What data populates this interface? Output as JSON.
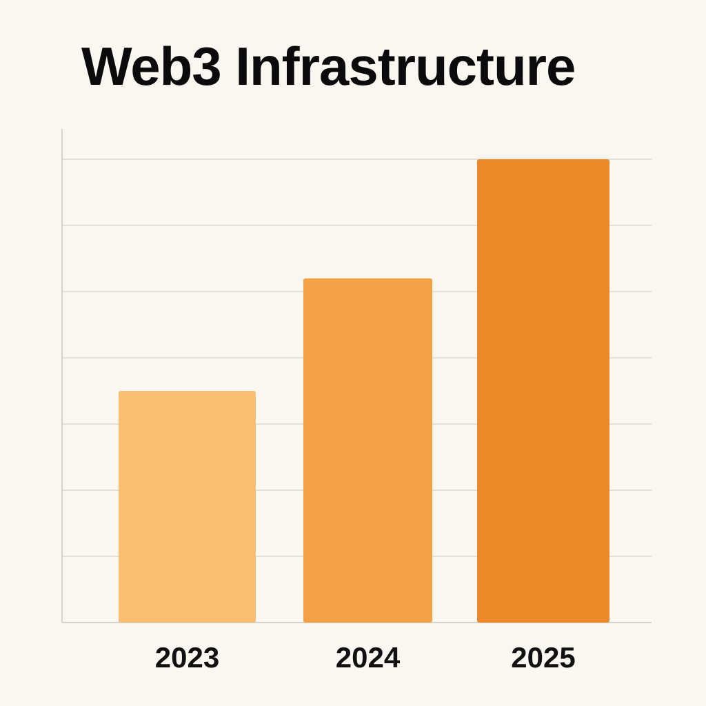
{
  "chart_data": {
    "type": "bar",
    "title": "Web3 Infrastructure",
    "xlabel": "",
    "ylabel": "",
    "categories": [
      "2023",
      "2024",
      "2025"
    ],
    "values": [
      3.5,
      5.2,
      7.0
    ],
    "ylim": [
      0,
      7.0
    ],
    "grid": true,
    "legend": "none",
    "colors": [
      "#fbbd72",
      "#f4a045",
      "#ec8a2a"
    ],
    "gridline_color": "#e3e0da",
    "axis_color": "#d6d3cd"
  }
}
